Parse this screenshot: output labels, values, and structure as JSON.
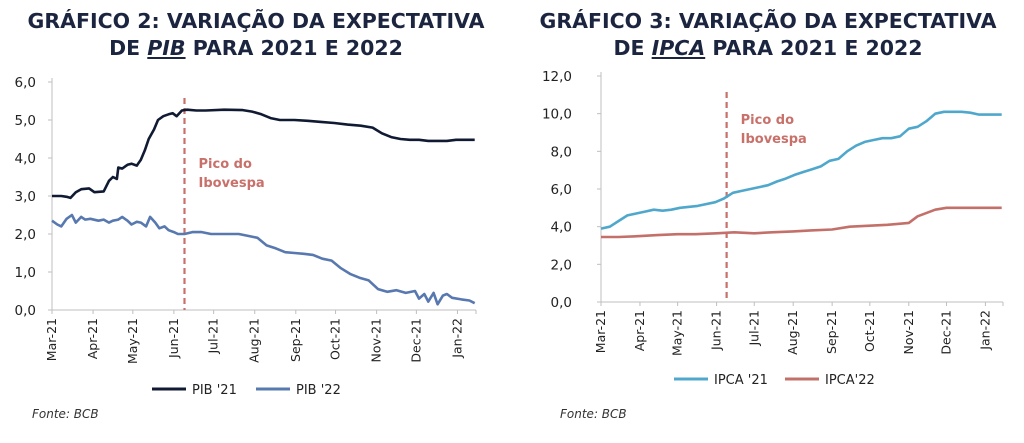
{
  "charts": [
    {
      "title_line1": "GRÁFICO 2: VARIAÇÃO DA EXPECTATIVA",
      "title_pre": "DE ",
      "title_em": "PIB",
      "title_post": " PARA 2021 E 2022",
      "source": "Fonte: BCB"
    },
    {
      "title_line1": "GRÁFICO 3: VARIAÇÃO DA EXPECTATIVA",
      "title_pre": "DE ",
      "title_em": "IPCA",
      "title_post": " PARA 2021 E 2022",
      "source": "Fonte: BCB"
    }
  ],
  "colors": {
    "title": "#1c2540",
    "pib21": "#101a33",
    "pib22": "#5878b0",
    "ipca21": "#4fa8cc",
    "ipca22": "#c4706a",
    "annotation": "#c8706a",
    "axis": "#bfbfbf"
  },
  "chart_data": [
    {
      "type": "line",
      "title": "GRÁFICO 2: VARIAÇÃO DA EXPECTATIVA DE PIB PARA 2021 E 2022",
      "x_tick_labels": [
        "Mar-21",
        "Apr-21",
        "May-21",
        "Jun-21",
        "Jul-21",
        "Aug-21",
        "Sep-21",
        "Oct-21",
        "Nov-21",
        "Dec-21",
        "Jan-22"
      ],
      "ylim": [
        0,
        6
      ],
      "y_ticks": [
        "0,0",
        "1,0",
        "2,0",
        "3,0",
        "4,0",
        "5,0",
        "6,0"
      ],
      "annotation": {
        "label_line1": "Pico do",
        "label_line2": "Ibovespa",
        "at": "2021-06-09"
      },
      "legend_placement": "bottom",
      "series": [
        {
          "name": "PIB '21",
          "color_key": "pib21",
          "points": [
            [
              "2021-03-01",
              3.0
            ],
            [
              "2021-03-08",
              3.0
            ],
            [
              "2021-03-12",
              2.98
            ],
            [
              "2021-03-15",
              2.95
            ],
            [
              "2021-03-19",
              3.1
            ],
            [
              "2021-03-23",
              3.18
            ],
            [
              "2021-03-29",
              3.2
            ],
            [
              "2021-04-02",
              3.1
            ],
            [
              "2021-04-09",
              3.12
            ],
            [
              "2021-04-13",
              3.4
            ],
            [
              "2021-04-16",
              3.5
            ],
            [
              "2021-04-19",
              3.45
            ],
            [
              "2021-04-20",
              3.75
            ],
            [
              "2021-04-23",
              3.72
            ],
            [
              "2021-04-27",
              3.82
            ],
            [
              "2021-04-30",
              3.85
            ],
            [
              "2021-05-04",
              3.8
            ],
            [
              "2021-05-05",
              3.85
            ],
            [
              "2021-05-07",
              3.95
            ],
            [
              "2021-05-10",
              4.2
            ],
            [
              "2021-05-13",
              4.5
            ],
            [
              "2021-05-17",
              4.75
            ],
            [
              "2021-05-20",
              5.0
            ],
            [
              "2021-05-24",
              5.1
            ],
            [
              "2021-05-28",
              5.15
            ],
            [
              "2021-05-31",
              5.18
            ],
            [
              "2021-06-03",
              5.1
            ],
            [
              "2021-06-07",
              5.25
            ],
            [
              "2021-06-11",
              5.27
            ],
            [
              "2021-06-18",
              5.25
            ],
            [
              "2021-06-25",
              5.25
            ],
            [
              "2021-07-09",
              5.27
            ],
            [
              "2021-07-23",
              5.26
            ],
            [
              "2021-07-30",
              5.22
            ],
            [
              "2021-08-06",
              5.15
            ],
            [
              "2021-08-13",
              5.05
            ],
            [
              "2021-08-20",
              5.0
            ],
            [
              "2021-08-31",
              5.0
            ],
            [
              "2021-09-10",
              4.98
            ],
            [
              "2021-09-20",
              4.95
            ],
            [
              "2021-09-30",
              4.92
            ],
            [
              "2021-10-10",
              4.88
            ],
            [
              "2021-10-20",
              4.85
            ],
            [
              "2021-10-29",
              4.8
            ],
            [
              "2021-11-05",
              4.65
            ],
            [
              "2021-11-12",
              4.55
            ],
            [
              "2021-11-19",
              4.5
            ],
            [
              "2021-11-26",
              4.48
            ],
            [
              "2021-12-03",
              4.48
            ],
            [
              "2021-12-10",
              4.45
            ],
            [
              "2021-12-17",
              4.45
            ],
            [
              "2021-12-24",
              4.45
            ],
            [
              "2021-12-31",
              4.48
            ],
            [
              "2022-01-07",
              4.48
            ],
            [
              "2022-01-14",
              4.48
            ]
          ]
        },
        {
          "name": "PIB '22",
          "color_key": "pib22",
          "points": [
            [
              "2021-03-01",
              2.35
            ],
            [
              "2021-03-05",
              2.25
            ],
            [
              "2021-03-08",
              2.2
            ],
            [
              "2021-03-12",
              2.4
            ],
            [
              "2021-03-16",
              2.5
            ],
            [
              "2021-03-19",
              2.3
            ],
            [
              "2021-03-23",
              2.45
            ],
            [
              "2021-03-26",
              2.38
            ],
            [
              "2021-03-30",
              2.4
            ],
            [
              "2021-04-05",
              2.35
            ],
            [
              "2021-04-09",
              2.38
            ],
            [
              "2021-04-13",
              2.3
            ],
            [
              "2021-04-16",
              2.35
            ],
            [
              "2021-04-20",
              2.38
            ],
            [
              "2021-04-23",
              2.45
            ],
            [
              "2021-04-27",
              2.35
            ],
            [
              "2021-04-30",
              2.25
            ],
            [
              "2021-05-04",
              2.32
            ],
            [
              "2021-05-07",
              2.3
            ],
            [
              "2021-05-11",
              2.2
            ],
            [
              "2021-05-14",
              2.45
            ],
            [
              "2021-05-18",
              2.3
            ],
            [
              "2021-05-21",
              2.15
            ],
            [
              "2021-05-25",
              2.2
            ],
            [
              "2021-05-28",
              2.1
            ],
            [
              "2021-06-01",
              2.05
            ],
            [
              "2021-06-04",
              2.0
            ],
            [
              "2021-06-09",
              2.0
            ],
            [
              "2021-06-15",
              2.05
            ],
            [
              "2021-06-22",
              2.05
            ],
            [
              "2021-06-29",
              2.0
            ],
            [
              "2021-07-06",
              2.0
            ],
            [
              "2021-07-13",
              2.0
            ],
            [
              "2021-07-20",
              2.0
            ],
            [
              "2021-07-27",
              1.95
            ],
            [
              "2021-08-03",
              1.9
            ],
            [
              "2021-08-10",
              1.7
            ],
            [
              "2021-08-17",
              1.62
            ],
            [
              "2021-08-24",
              1.52
            ],
            [
              "2021-08-31",
              1.5
            ],
            [
              "2021-09-07",
              1.48
            ],
            [
              "2021-09-14",
              1.45
            ],
            [
              "2021-09-21",
              1.35
            ],
            [
              "2021-09-28",
              1.3
            ],
            [
              "2021-10-05",
              1.1
            ],
            [
              "2021-10-12",
              0.95
            ],
            [
              "2021-10-19",
              0.85
            ],
            [
              "2021-10-26",
              0.78
            ],
            [
              "2021-11-02",
              0.55
            ],
            [
              "2021-11-09",
              0.48
            ],
            [
              "2021-11-16",
              0.52
            ],
            [
              "2021-11-23",
              0.45
            ],
            [
              "2021-11-30",
              0.5
            ],
            [
              "2021-12-03",
              0.3
            ],
            [
              "2021-12-07",
              0.42
            ],
            [
              "2021-12-10",
              0.22
            ],
            [
              "2021-12-14",
              0.45
            ],
            [
              "2021-12-17",
              0.15
            ],
            [
              "2021-12-21",
              0.38
            ],
            [
              "2021-12-24",
              0.42
            ],
            [
              "2021-12-28",
              0.32
            ],
            [
              "2022-01-04",
              0.28
            ],
            [
              "2022-01-10",
              0.25
            ],
            [
              "2022-01-14",
              0.18
            ]
          ]
        }
      ]
    },
    {
      "type": "line",
      "title": "GRÁFICO 3: VARIAÇÃO DA EXPECTATIVA DE IPCA PARA 2021 E 2022",
      "x_tick_labels": [
        "Mar-21",
        "Apr-21",
        "May-21",
        "Jun-21",
        "Jul-21",
        "Aug-21",
        "Sep-21",
        "Oct-21",
        "Nov-21",
        "Dec-21",
        "Jan-22"
      ],
      "ylim": [
        0,
        12
      ],
      "y_ticks": [
        "0,0",
        "2,0",
        "4,0",
        "6,0",
        "8,0",
        "10,0",
        "12,0"
      ],
      "annotation": {
        "label_line1": "Pico do",
        "label_line2": "Ibovespa",
        "at": "2021-06-09"
      },
      "legend_placement": "bottom",
      "series": [
        {
          "name": "IPCA '21",
          "color_key": "ipca21",
          "points": [
            [
              "2021-03-01",
              3.9
            ],
            [
              "2021-03-08",
              4.0
            ],
            [
              "2021-03-15",
              4.3
            ],
            [
              "2021-03-22",
              4.6
            ],
            [
              "2021-03-29",
              4.7
            ],
            [
              "2021-04-05",
              4.8
            ],
            [
              "2021-04-12",
              4.9
            ],
            [
              "2021-04-19",
              4.85
            ],
            [
              "2021-04-26",
              4.9
            ],
            [
              "2021-05-03",
              5.0
            ],
            [
              "2021-05-17",
              5.1
            ],
            [
              "2021-05-31",
              5.3
            ],
            [
              "2021-06-07",
              5.5
            ],
            [
              "2021-06-14",
              5.8
            ],
            [
              "2021-06-21",
              5.9
            ],
            [
              "2021-06-28",
              6.0
            ],
            [
              "2021-07-05",
              6.1
            ],
            [
              "2021-07-12",
              6.2
            ],
            [
              "2021-07-19",
              6.4
            ],
            [
              "2021-07-26",
              6.55
            ],
            [
              "2021-08-02",
              6.75
            ],
            [
              "2021-08-09",
              6.9
            ],
            [
              "2021-08-16",
              7.05
            ],
            [
              "2021-08-23",
              7.2
            ],
            [
              "2021-08-30",
              7.5
            ],
            [
              "2021-09-06",
              7.6
            ],
            [
              "2021-09-13",
              8.0
            ],
            [
              "2021-09-20",
              8.3
            ],
            [
              "2021-09-27",
              8.5
            ],
            [
              "2021-10-04",
              8.6
            ],
            [
              "2021-10-11",
              8.7
            ],
            [
              "2021-10-18",
              8.7
            ],
            [
              "2021-10-25",
              8.8
            ],
            [
              "2021-11-01",
              9.2
            ],
            [
              "2021-11-08",
              9.3
            ],
            [
              "2021-11-15",
              9.6
            ],
            [
              "2021-11-22",
              10.0
            ],
            [
              "2021-11-29",
              10.1
            ],
            [
              "2021-12-06",
              10.1
            ],
            [
              "2021-12-13",
              10.1
            ],
            [
              "2021-12-20",
              10.05
            ],
            [
              "2021-12-27",
              9.95
            ],
            [
              "2022-01-03",
              9.95
            ],
            [
              "2022-01-14",
              9.95
            ]
          ]
        },
        {
          "name": "IPCA'22",
          "color_key": "ipca22",
          "points": [
            [
              "2021-03-01",
              3.45
            ],
            [
              "2021-03-15",
              3.45
            ],
            [
              "2021-04-01",
              3.5
            ],
            [
              "2021-04-15",
              3.55
            ],
            [
              "2021-05-01",
              3.6
            ],
            [
              "2021-05-15",
              3.6
            ],
            [
              "2021-06-01",
              3.65
            ],
            [
              "2021-06-15",
              3.7
            ],
            [
              "2021-07-01",
              3.65
            ],
            [
              "2021-07-15",
              3.7
            ],
            [
              "2021-08-01",
              3.75
            ],
            [
              "2021-08-15",
              3.8
            ],
            [
              "2021-09-01",
              3.85
            ],
            [
              "2021-09-15",
              4.0
            ],
            [
              "2021-10-01",
              4.05
            ],
            [
              "2021-10-15",
              4.1
            ],
            [
              "2021-11-01",
              4.2
            ],
            [
              "2021-11-08",
              4.55
            ],
            [
              "2021-11-22",
              4.9
            ],
            [
              "2021-12-01",
              5.0
            ],
            [
              "2021-12-15",
              5.0
            ],
            [
              "2022-01-01",
              5.0
            ],
            [
              "2022-01-14",
              5.0
            ]
          ]
        }
      ]
    }
  ]
}
